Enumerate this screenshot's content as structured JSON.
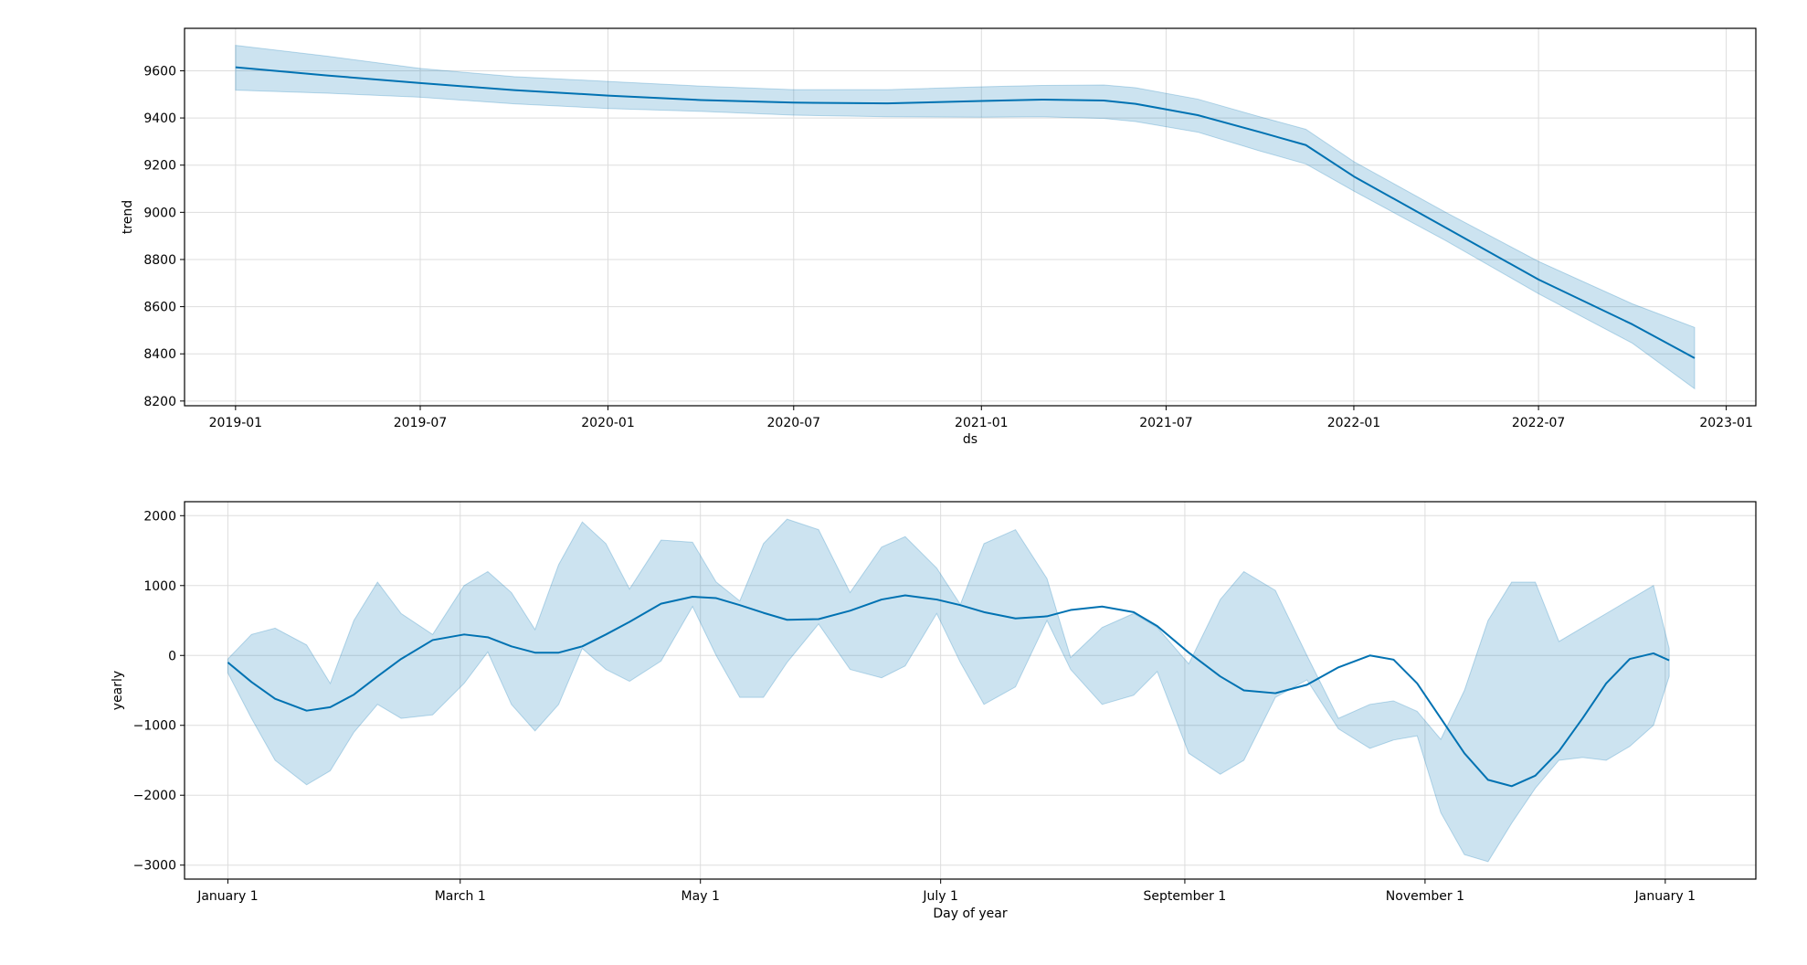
{
  "colors": {
    "line": "#0072B2",
    "band": "#0072B2",
    "band_opacity": 0.2,
    "grid": "#dddddd",
    "axis": "#000000"
  },
  "chart_data": [
    {
      "id": "trend",
      "type": "line",
      "title": "",
      "xlabel": "ds",
      "ylabel": "trend",
      "x_kind": "date",
      "xlim": [
        "2018-11-12",
        "2023-01-30"
      ],
      "ylim": [
        8180,
        9780
      ],
      "grid": true,
      "xticks": [
        {
          "value": "2019-01-01",
          "label": "2019-01"
        },
        {
          "value": "2019-07-01",
          "label": "2019-07"
        },
        {
          "value": "2020-01-01",
          "label": "2020-01"
        },
        {
          "value": "2020-07-01",
          "label": "2020-07"
        },
        {
          "value": "2021-01-01",
          "label": "2021-01"
        },
        {
          "value": "2021-07-01",
          "label": "2021-07"
        },
        {
          "value": "2022-01-01",
          "label": "2022-01"
        },
        {
          "value": "2022-07-01",
          "label": "2022-07"
        },
        {
          "value": "2023-01-01",
          "label": "2023-01"
        }
      ],
      "yticks": [
        8200,
        8400,
        8600,
        8800,
        9000,
        9200,
        9400,
        9600
      ],
      "series": [
        {
          "x": [
            "2019-01-01",
            "2019-04-01",
            "2019-07-01",
            "2019-10-01",
            "2020-01-01",
            "2020-04-01",
            "2020-07-01",
            "2020-10-01",
            "2021-01-01",
            "2021-03-01",
            "2021-05-01",
            "2021-06-01",
            "2021-08-01",
            "2021-10-01",
            "2021-11-15",
            "2022-01-01",
            "2022-04-01",
            "2022-07-01",
            "2022-10-01",
            "2022-12-01"
          ],
          "y": [
            9615,
            9580,
            9548,
            9518,
            9495,
            9476,
            9465,
            9462,
            9472,
            9478,
            9474,
            9460,
            9412,
            9340,
            9285,
            9152,
            8935,
            8715,
            8525,
            8382
          ],
          "lower": [
            9518,
            9505,
            9488,
            9460,
            9440,
            9428,
            9412,
            9405,
            9403,
            9405,
            9398,
            9385,
            9340,
            9260,
            9205,
            9090,
            8880,
            8655,
            8445,
            8252
          ],
          "upper": [
            9708,
            9662,
            9610,
            9575,
            9555,
            9535,
            9520,
            9520,
            9532,
            9538,
            9540,
            9528,
            9480,
            9405,
            9352,
            9215,
            9000,
            8792,
            8612,
            8512
          ]
        }
      ]
    },
    {
      "id": "yearly",
      "type": "line",
      "title": "",
      "xlabel": "Day of year",
      "ylabel": "yearly",
      "x_kind": "day",
      "xlim": [
        -11,
        388
      ],
      "ylim": [
        -3200,
        2200
      ],
      "grid": true,
      "xticks": [
        {
          "value": 0,
          "label": "January 1"
        },
        {
          "value": 59,
          "label": "March 1"
        },
        {
          "value": 120,
          "label": "May 1"
        },
        {
          "value": 181,
          "label": "July 1"
        },
        {
          "value": 243,
          "label": "September 1"
        },
        {
          "value": 304,
          "label": "November 1"
        },
        {
          "value": 365,
          "label": "January 1"
        }
      ],
      "yticks": [
        -3000,
        -2000,
        -1000,
        0,
        1000,
        2000
      ],
      "series": [
        {
          "x": [
            0,
            6,
            12,
            20,
            26,
            32,
            38,
            44,
            52,
            60,
            66,
            72,
            78,
            84,
            90,
            96,
            102,
            110,
            118,
            124,
            130,
            136,
            142,
            150,
            158,
            166,
            172,
            180,
            186,
            192,
            200,
            208,
            214,
            222,
            230,
            236,
            244,
            252,
            258,
            266,
            274,
            282,
            290,
            296,
            302,
            308,
            314,
            320,
            326,
            332,
            338,
            344,
            350,
            356,
            362,
            366
          ],
          "y": [
            -100,
            -380,
            -620,
            -790,
            -740,
            -560,
            -300,
            -50,
            220,
            300,
            260,
            130,
            40,
            40,
            130,
            300,
            480,
            740,
            840,
            820,
            720,
            610,
            510,
            520,
            640,
            800,
            860,
            800,
            720,
            620,
            530,
            560,
            650,
            700,
            620,
            420,
            40,
            -300,
            -500,
            -540,
            -420,
            -170,
            0,
            -60,
            -400,
            -900,
            -1400,
            -1780,
            -1870,
            -1720,
            -1370,
            -900,
            -400,
            -50,
            30,
            -70
          ],
          "lower": [
            -250,
            -900,
            -1500,
            -1850,
            -1650,
            -1100,
            -700,
            -900,
            -850,
            -400,
            50,
            -700,
            -1080,
            -700,
            100,
            -200,
            -370,
            -80,
            700,
            0,
            -600,
            -600,
            -100,
            450,
            -200,
            -320,
            -150,
            600,
            -100,
            -700,
            -450,
            500,
            -200,
            -700,
            -570,
            -230,
            -1400,
            -1700,
            -1500,
            -600,
            -350,
            -1050,
            -1330,
            -1210,
            -1150,
            -2250,
            -2850,
            -2950,
            -2400,
            -1900,
            -1500,
            -1460,
            -1500,
            -1300,
            -1000,
            -300
          ],
          "upper": [
            -50,
            300,
            390,
            150,
            -400,
            500,
            1050,
            600,
            300,
            1000,
            1200,
            900,
            370,
            1300,
            1910,
            1600,
            950,
            1650,
            1620,
            1050,
            780,
            1600,
            1950,
            1800,
            900,
            1550,
            1700,
            1250,
            730,
            1600,
            1800,
            1100,
            -30,
            400,
            600,
            400,
            -120,
            800,
            1200,
            930,
            0,
            -900,
            -700,
            -650,
            -800,
            -1200,
            -500,
            500,
            1050,
            1050,
            200,
            400,
            600,
            800,
            1000,
            100
          ]
        }
      ]
    }
  ]
}
